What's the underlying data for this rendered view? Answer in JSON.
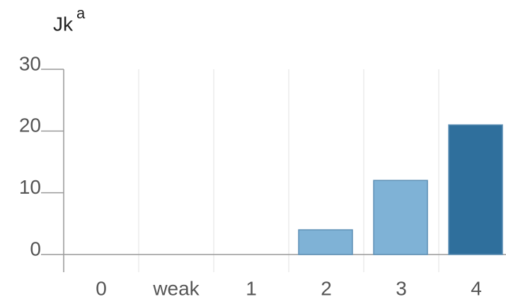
{
  "chart_data": {
    "type": "bar",
    "title": "Jk",
    "title_superscript": "a",
    "categories": [
      "0",
      "weak",
      "1",
      "2",
      "3",
      "4"
    ],
    "values": [
      0,
      0,
      0,
      4,
      12,
      21
    ],
    "colors": [
      "#7fb2d6",
      "#7fb2d6",
      "#7fb2d6",
      "#7fb2d6",
      "#7fb2d6",
      "#2f6f9c"
    ],
    "ylim": [
      0,
      30
    ],
    "yticks": [
      0,
      10,
      20,
      30
    ],
    "grid": true
  }
}
